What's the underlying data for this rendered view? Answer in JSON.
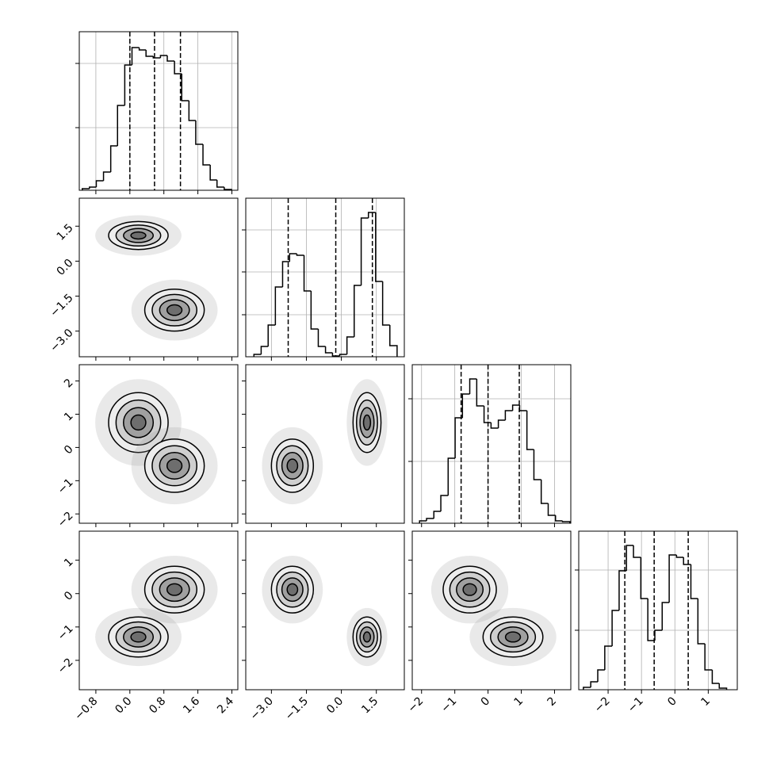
{
  "chart_data": {
    "type": "corner",
    "params": [
      {
        "lim": [
          -1.19,
          2.54
        ],
        "ticks": [
          {
            "value": -0.8,
            "label": "−0.8"
          },
          {
            "value": 0,
            "label": "0.0"
          },
          0.8,
          1.6,
          2.4
        ],
        "bins": [
          -1.12,
          -0.95,
          -0.79,
          -0.62,
          -0.45,
          -0.29,
          -0.12,
          0.05,
          0.22,
          0.38,
          0.55,
          0.72,
          0.88,
          1.05,
          1.22,
          1.39,
          1.55,
          1.72,
          1.89,
          2.05,
          2.22,
          2.39
        ],
        "counts": [
          2,
          4,
          12,
          23,
          56,
          107,
          158,
          180,
          177,
          169,
          167,
          170,
          163,
          147,
          113,
          88,
          58,
          32,
          13,
          4,
          1
        ],
        "ylim": [
          0,
          200
        ],
        "yticks": [
          79,
          160
        ],
        "quantiles": [
          0.0,
          0.58,
          1.19
        ]
      },
      {
        "lim": [
          -4.1,
          2.7
        ],
        "ticks": [
          {
            "value": -3,
            "label": "−3.0"
          },
          {
            "value": -1.5,
            "label": "−1.5"
          },
          {
            "value": 0,
            "label": "0.0"
          },
          1.5
        ],
        "bins": [
          -3.75,
          -3.44,
          -3.14,
          -2.83,
          -2.52,
          -2.22,
          -1.91,
          -1.6,
          -1.3,
          -0.99,
          -0.68,
          -0.38,
          -0.07,
          0.24,
          0.55,
          0.85,
          1.16,
          1.47,
          1.77,
          2.08,
          2.39
        ],
        "counts": [
          3,
          13,
          40,
          88,
          120,
          130,
          128,
          83,
          35,
          13,
          5,
          1,
          3,
          25,
          90,
          175,
          182,
          95,
          40,
          14
        ],
        "ylim": [
          0,
          200
        ],
        "yticks": [
          53,
          107,
          160
        ],
        "quantiles": [
          -2.28,
          -0.24,
          1.33
        ]
      },
      {
        "lim": [
          -2.28,
          2.49
        ],
        "ticks": [
          {
            "value": -2,
            "label": "−2"
          },
          {
            "value": -1,
            "label": "−1"
          },
          0,
          1,
          2
        ],
        "bins": [
          -2.06,
          -1.85,
          -1.63,
          -1.42,
          -1.2,
          -0.99,
          -0.77,
          -0.55,
          -0.34,
          -0.12,
          0.09,
          0.31,
          0.52,
          0.74,
          0.95,
          1.17,
          1.38,
          1.6,
          1.81,
          2.03,
          2.24,
          2.46
        ],
        "counts": [
          3,
          6,
          15,
          35,
          82,
          133,
          163,
          182,
          148,
          127,
          120,
          130,
          142,
          149,
          142,
          93,
          55,
          25,
          10,
          3,
          2
        ],
        "ylim": [
          0,
          200
        ],
        "yticks": [
          78,
          157
        ],
        "quantiles": [
          -0.81,
          0.0,
          0.94
        ]
      },
      {
        "lim": [
          -2.88,
          1.87
        ],
        "ticks": [
          {
            "value": -2,
            "label": "−2"
          },
          {
            "value": -1,
            "label": "−1"
          },
          0,
          1
        ],
        "bins": [
          -2.74,
          -2.52,
          -2.31,
          -2.1,
          -1.88,
          -1.67,
          -1.45,
          -1.24,
          -1.02,
          -0.81,
          -0.6,
          -0.38,
          -0.17,
          0.05,
          0.26,
          0.48,
          0.69,
          0.9,
          1.12,
          1.33,
          1.55
        ],
        "counts": [
          3,
          10,
          25,
          55,
          100,
          150,
          182,
          167,
          115,
          62,
          75,
          110,
          170,
          167,
          158,
          115,
          58,
          25,
          8,
          2
        ],
        "ylim": [
          0,
          200
        ],
        "yticks": [
          75,
          151
        ],
        "quantiles": [
          -1.5,
          -0.62,
          0.4
        ]
      }
    ],
    "components": [
      {
        "mean": [
          0.2,
          1.1,
          0.75,
          -1.3
        ],
        "std": [
          0.35,
          0.3,
          0.45,
          0.3
        ]
      },
      {
        "mean": [
          1.05,
          -2.1,
          -0.55,
          0.12
        ],
        "std": [
          0.35,
          0.45,
          0.4,
          0.35
        ]
      }
    ],
    "levels": [
      0.5,
      1,
      1.5,
      2
    ],
    "grid": true
  }
}
